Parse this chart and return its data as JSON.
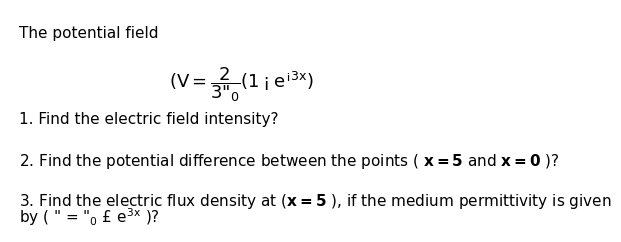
{
  "background_color": "#ffffff",
  "title_text": "The potential field",
  "formula": "(V = \\dfrac{2}{3\\varepsilon_0}(1 - e^{-3x})",
  "q1": "1. Find the electric field intensity?",
  "q2": "2. Find the potential difference between the points ( x = 5 and x = 0 )?",
  "q3a": "3. Find the electric flux density at (x = 5 ), if the medium permittivity is given",
  "q3b": "by ( \\varepsilon = \\varepsilon_0 \\times e^{3x} )?",
  "font_family": "DejaVu Sans",
  "title_fontsize": 11,
  "body_fontsize": 11,
  "formula_fontsize": 13
}
